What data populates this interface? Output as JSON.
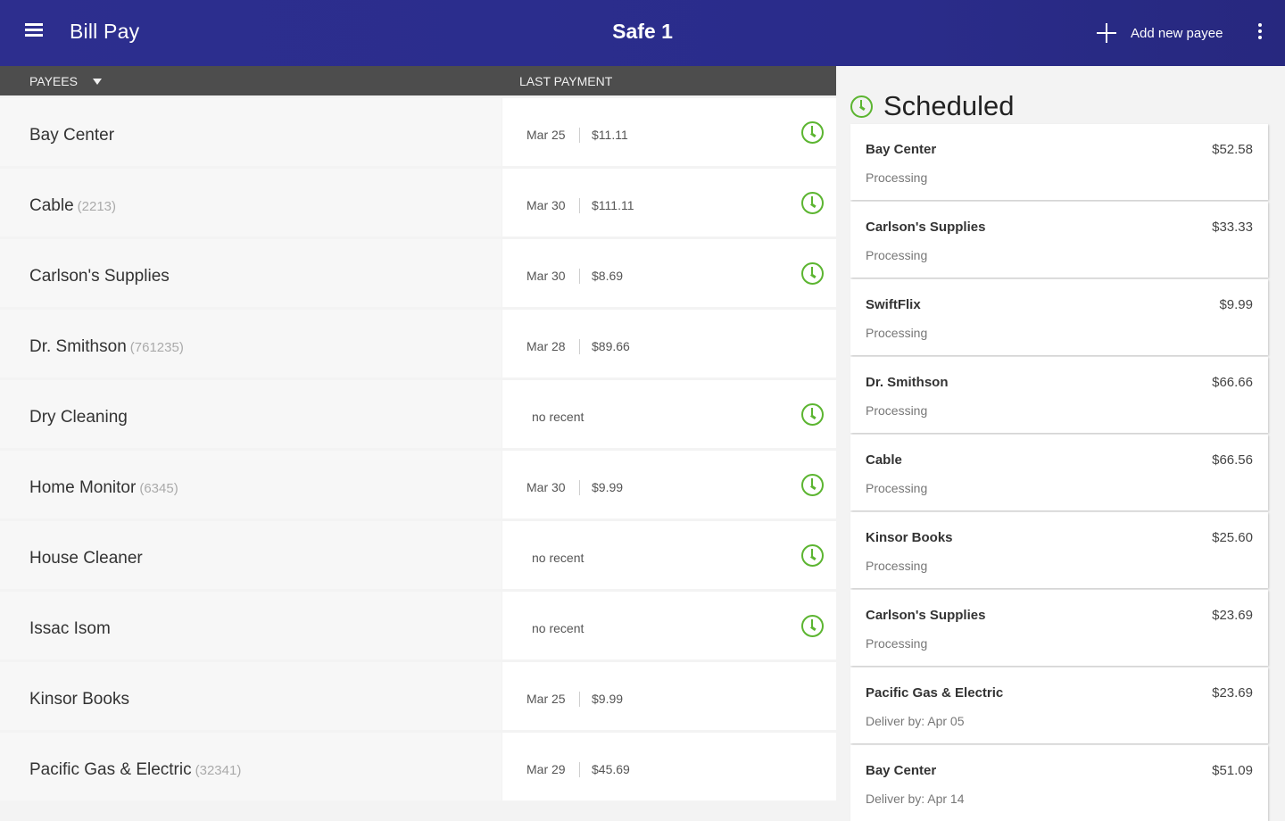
{
  "appbar": {
    "title": "Bill Pay",
    "account": "Safe 1",
    "add_label": "Add new payee",
    "menu_icon": "hamburger-menu-icon",
    "add_icon": "plus-icon",
    "overflow_icon": "more-vertical-icon",
    "colors": {
      "bar": "#2b2d8d",
      "text": "#ffffff"
    }
  },
  "columns": {
    "payees": "PAYEES",
    "last_payment": "LAST PAYMENT"
  },
  "payees": [
    {
      "name": "Bay Center",
      "account": "",
      "date": "Mar 25",
      "amount": "$11.11",
      "no_recent": "",
      "schedule_icon": true
    },
    {
      "name": "Cable",
      "account": "(2213)",
      "date": "Mar 30",
      "amount": "$111.11",
      "no_recent": "",
      "schedule_icon": true
    },
    {
      "name": "Carlson's Supplies",
      "account": "",
      "date": "Mar 30",
      "amount": "$8.69",
      "no_recent": "",
      "schedule_icon": true
    },
    {
      "name": "Dr. Smithson",
      "account": "(761235)",
      "date": "Mar 28",
      "amount": "$89.66",
      "no_recent": "",
      "schedule_icon": false
    },
    {
      "name": "Dry Cleaning",
      "account": "",
      "date": "",
      "amount": "",
      "no_recent": "no recent",
      "schedule_icon": true
    },
    {
      "name": "Home Monitor",
      "account": "(6345)",
      "date": "Mar 30",
      "amount": "$9.99",
      "no_recent": "",
      "schedule_icon": true
    },
    {
      "name": "House Cleaner",
      "account": "",
      "date": "",
      "amount": "",
      "no_recent": "no recent",
      "schedule_icon": true
    },
    {
      "name": "Issac Isom",
      "account": "",
      "date": "",
      "amount": "",
      "no_recent": "no recent",
      "schedule_icon": true
    },
    {
      "name": "Kinsor Books",
      "account": "",
      "date": "Mar 25",
      "amount": "$9.99",
      "no_recent": "",
      "schedule_icon": false
    },
    {
      "name": "Pacific Gas & Electric",
      "account": "(32341)",
      "date": "Mar 29",
      "amount": "$45.69",
      "no_recent": "",
      "schedule_icon": false
    }
  ],
  "scheduled": {
    "title": "Scheduled",
    "icon": "clock-icon",
    "accent": "#5cb531",
    "items": [
      {
        "name": "Bay Center",
        "amount": "$52.58",
        "status": "Processing"
      },
      {
        "name": "Carlson's Supplies",
        "amount": "$33.33",
        "status": "Processing"
      },
      {
        "name": "SwiftFlix",
        "amount": "$9.99",
        "status": "Processing"
      },
      {
        "name": "Dr. Smithson",
        "amount": "$66.66",
        "status": "Processing"
      },
      {
        "name": "Cable",
        "amount": "$66.56",
        "status": "Processing"
      },
      {
        "name": "Kinsor Books",
        "amount": "$25.60",
        "status": "Processing"
      },
      {
        "name": "Carlson's Supplies",
        "amount": "$23.69",
        "status": "Processing"
      },
      {
        "name": "Pacific Gas & Electric",
        "amount": "$23.69",
        "status": "Deliver by: Apr 05"
      },
      {
        "name": "Bay Center",
        "amount": "$51.09",
        "status": "Deliver by: Apr 14"
      }
    ]
  }
}
